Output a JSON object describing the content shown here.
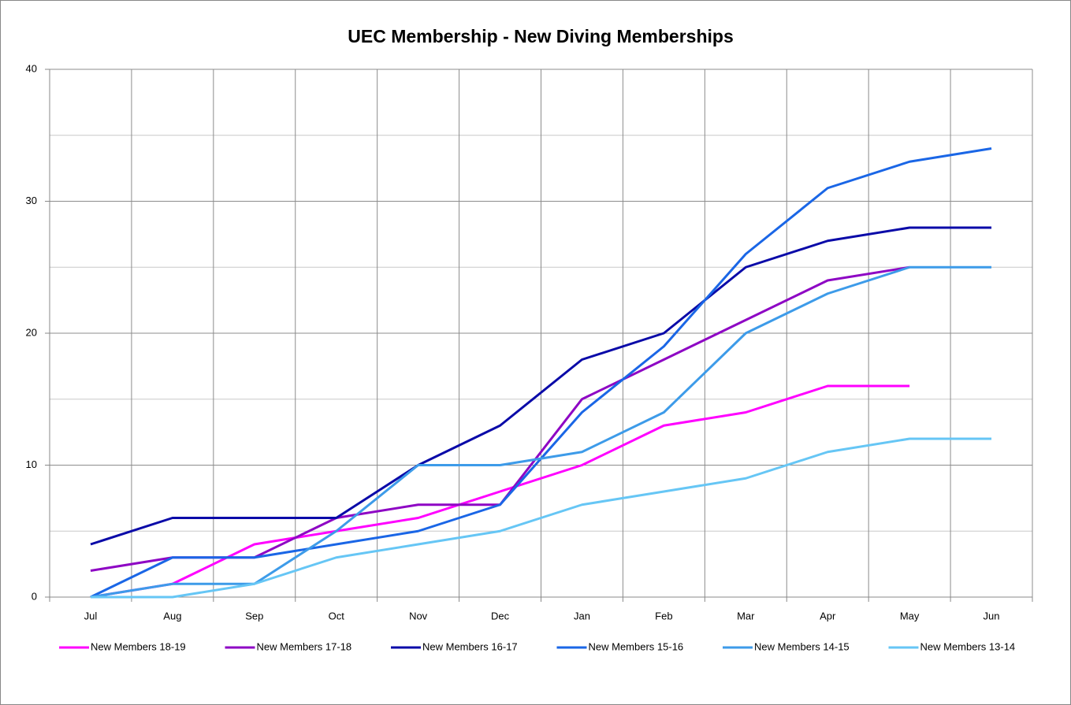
{
  "chart_data": {
    "type": "line",
    "title": "UEC Membership - New Diving Memberships",
    "categories": [
      "Jul",
      "Aug",
      "Sep",
      "Oct",
      "Nov",
      "Dec",
      "Jan",
      "Feb",
      "Mar",
      "Apr",
      "May",
      "Jun"
    ],
    "series": [
      {
        "name": "New Members 18-19",
        "color": "#ff00ff",
        "values": [
          0,
          1,
          4,
          5,
          6,
          8,
          10,
          13,
          14,
          16,
          16,
          null
        ]
      },
      {
        "name": "New Members 17-18",
        "color": "#8e06c4",
        "values": [
          2,
          3,
          3,
          6,
          7,
          7,
          15,
          18,
          21,
          24,
          25,
          null
        ]
      },
      {
        "name": "New Members 16-17",
        "color": "#0a0aa8",
        "values": [
          4,
          6,
          6,
          6,
          10,
          13,
          18,
          20,
          25,
          27,
          28,
          28
        ]
      },
      {
        "name": "New Members 15-16",
        "color": "#1a66e6",
        "values": [
          0,
          3,
          3,
          4,
          5,
          7,
          14,
          19,
          26,
          31,
          33,
          34
        ]
      },
      {
        "name": "New Members 14-15",
        "color": "#3d9be9",
        "values": [
          0,
          1,
          1,
          5,
          10,
          10,
          11,
          14,
          20,
          23,
          25,
          25
        ]
      },
      {
        "name": "New Members 13-14",
        "color": "#66c6f5",
        "values": [
          0,
          0,
          1,
          3,
          4,
          5,
          7,
          8,
          9,
          11,
          12,
          12
        ]
      }
    ],
    "ylim": [
      0,
      40
    ],
    "yticks": [
      0,
      10,
      20,
      30,
      40
    ],
    "minor_yticks": [
      5,
      15,
      25,
      35
    ],
    "grid": true,
    "legend": "bottom"
  }
}
